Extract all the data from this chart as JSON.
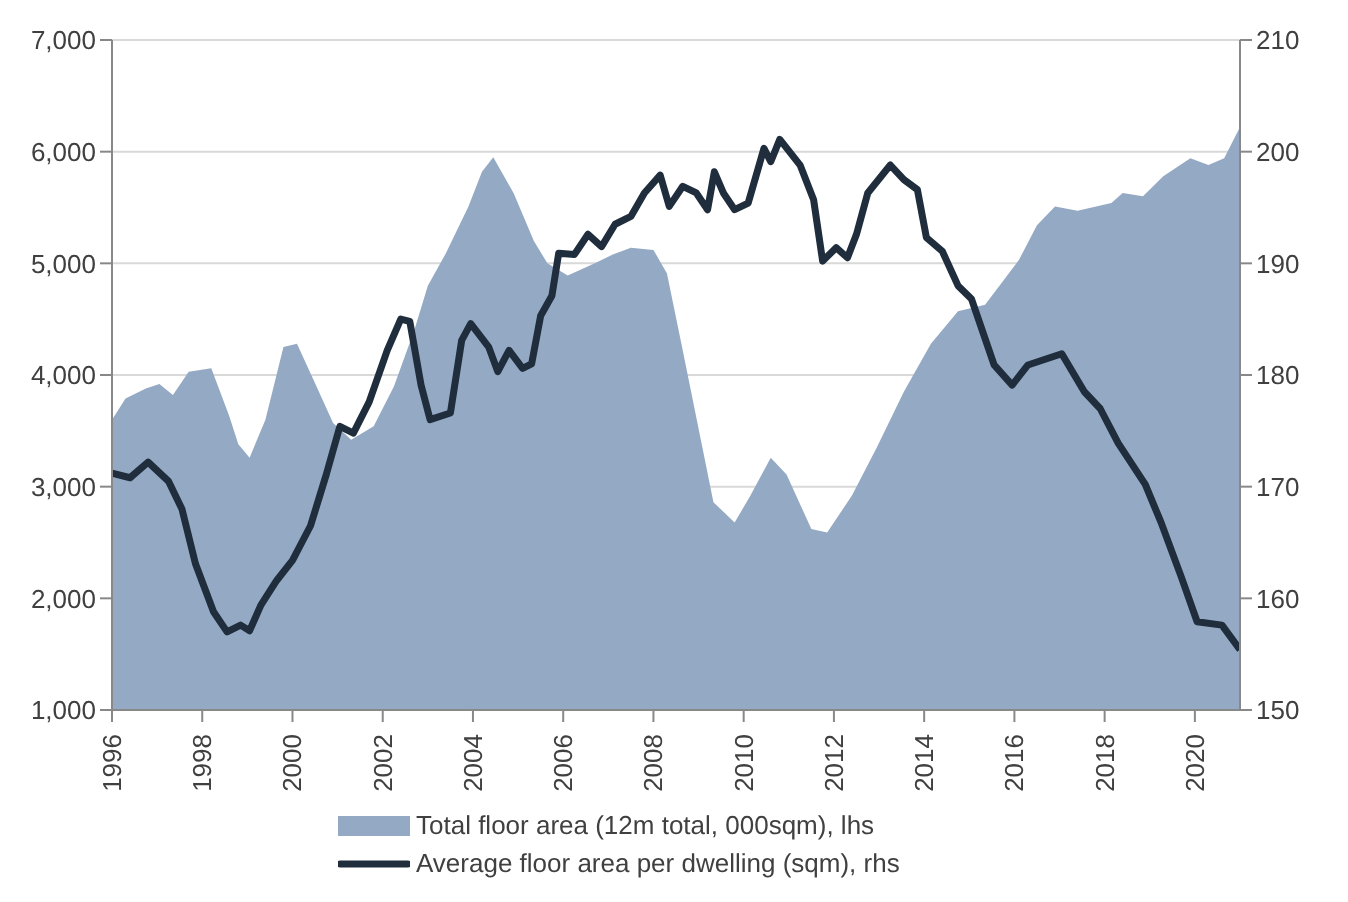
{
  "chart_data": {
    "type": "area",
    "xlim": [
      1996,
      2021
    ],
    "xticks": [
      1996,
      1998,
      2000,
      2002,
      2004,
      2006,
      2008,
      2010,
      2012,
      2014,
      2016,
      2018,
      2020
    ],
    "ylim": [
      1000,
      7000
    ],
    "yticks": [
      {
        "value": 1000,
        "label": "1,000"
      },
      {
        "value": 2000,
        "label": "2,000"
      },
      {
        "value": 3000,
        "label": "3,000"
      },
      {
        "value": 4000,
        "label": "4,000"
      },
      {
        "value": 5000,
        "label": "5,000"
      },
      {
        "value": 6000,
        "label": "6,000"
      },
      {
        "value": 7000,
        "label": "7,000"
      }
    ],
    "y2lim": [
      150,
      210
    ],
    "y2ticks": [
      150,
      160,
      170,
      180,
      190,
      200,
      210
    ],
    "grid": "y",
    "legend": "bottom",
    "series": [
      {
        "name": "Total floor area (12m total, 000sqm), lhs",
        "color": "#94a9c3",
        "x": [
          1996.0,
          1996.3,
          1996.75,
          1997.05,
          1997.35,
          1997.7,
          1998.2,
          1998.6,
          1998.8,
          1999.05,
          1999.4,
          1999.8,
          2000.1,
          2000.45,
          2000.9,
          2001.3,
          2001.8,
          2002.25,
          2002.7,
          2003.0,
          2003.4,
          2003.9,
          2004.2,
          2004.45,
          2004.9,
          2005.35,
          2005.65,
          2006.1,
          2006.7,
          2007.1,
          2007.5,
          2008.0,
          2008.3,
          2008.65,
          2009.05,
          2009.33,
          2009.8,
          2010.15,
          2010.6,
          2010.95,
          2011.5,
          2011.85,
          2012.4,
          2012.95,
          2013.55,
          2014.15,
          2014.75,
          2015.35,
          2016.1,
          2016.5,
          2016.9,
          2017.4,
          2018.15,
          2018.4,
          2018.85,
          2019.3,
          2019.9,
          2020.3,
          2020.65,
          2021.0
        ],
        "values": [
          3600,
          3790,
          3880,
          3920,
          3820,
          4030,
          4060,
          3630,
          3380,
          3260,
          3600,
          4250,
          4280,
          3970,
          3570,
          3420,
          3540,
          3900,
          4400,
          4800,
          5090,
          5510,
          5820,
          5950,
          5630,
          5200,
          5000,
          4890,
          5000,
          5080,
          5140,
          5120,
          4910,
          4220,
          3420,
          2860,
          2680,
          2920,
          3260,
          3110,
          2620,
          2590,
          2920,
          3350,
          3850,
          4280,
          4570,
          4630,
          5030,
          5340,
          5510,
          5470,
          5540,
          5630,
          5600,
          5780,
          5940,
          5880,
          5940,
          6220
        ]
      },
      {
        "name": "Average floor area per dwelling (sqm), rhs",
        "type": "line",
        "axis": "y2",
        "color": "#1f2d3d",
        "x": [
          1996.0,
          1996.4,
          1996.8,
          1997.25,
          1997.55,
          1997.85,
          1998.25,
          1998.55,
          1998.85,
          1999.05,
          1999.3,
          1999.65,
          2000.0,
          2000.4,
          2000.75,
          2001.05,
          2001.35,
          2001.7,
          2002.1,
          2002.4,
          2002.6,
          2002.85,
          2003.05,
          2003.5,
          2003.75,
          2003.95,
          2004.35,
          2004.55,
          2004.8,
          2005.1,
          2005.3,
          2005.5,
          2005.75,
          2005.9,
          2006.25,
          2006.55,
          2006.85,
          2007.15,
          2007.5,
          2007.8,
          2008.15,
          2008.35,
          2008.65,
          2008.95,
          2009.2,
          2009.35,
          2009.55,
          2009.8,
          2010.1,
          2010.45,
          2010.6,
          2010.8,
          2011.25,
          2011.55,
          2011.75,
          2012.05,
          2012.3,
          2012.5,
          2012.75,
          2013.25,
          2013.55,
          2013.85,
          2014.05,
          2014.4,
          2014.75,
          2015.05,
          2015.55,
          2015.95,
          2016.3,
          2017.05,
          2017.55,
          2017.9,
          2018.3,
          2018.9,
          2019.25,
          2019.7,
          2020.05,
          2020.6,
          2021.0
        ],
        "values": [
          171.2,
          170.8,
          172.2,
          170.5,
          168.0,
          163.1,
          158.8,
          157.0,
          157.6,
          157.1,
          159.4,
          161.6,
          163.4,
          166.5,
          171.1,
          175.4,
          174.8,
          177.6,
          182.2,
          185.0,
          184.8,
          179.1,
          176.0,
          176.6,
          183.1,
          184.6,
          182.5,
          180.3,
          182.2,
          180.6,
          181.0,
          185.3,
          187.1,
          190.9,
          190.8,
          192.6,
          191.5,
          193.5,
          194.2,
          196.3,
          197.9,
          195.1,
          196.9,
          196.3,
          194.8,
          198.2,
          196.3,
          194.8,
          195.4,
          200.3,
          199.1,
          201.1,
          198.8,
          195.7,
          190.2,
          191.4,
          190.5,
          192.6,
          196.3,
          198.8,
          197.5,
          196.6,
          192.3,
          191.1,
          188.0,
          186.8,
          180.9,
          179.1,
          180.9,
          181.9,
          178.5,
          177.0,
          173.9,
          170.2,
          166.8,
          161.9,
          157.9,
          157.6,
          155.4
        ]
      }
    ]
  }
}
